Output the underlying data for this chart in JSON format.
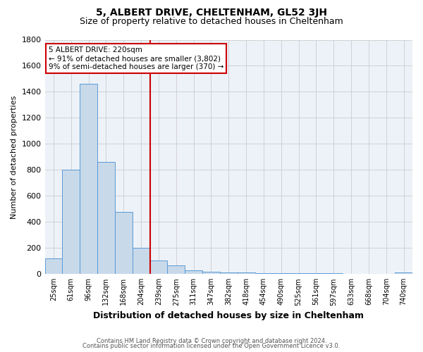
{
  "title": "5, ALBERT DRIVE, CHELTENHAM, GL52 3JH",
  "subtitle": "Size of property relative to detached houses in Cheltenham",
  "xlabel": "Distribution of detached houses by size in Cheltenham",
  "ylabel": "Number of detached properties",
  "footnote1": "Contains HM Land Registry data © Crown copyright and database right 2024.",
  "footnote2": "Contains public sector information licensed under the Open Government Licence v3.0.",
  "categories": [
    "25sqm",
    "61sqm",
    "96sqm",
    "132sqm",
    "168sqm",
    "204sqm",
    "239sqm",
    "275sqm",
    "311sqm",
    "347sqm",
    "382sqm",
    "418sqm",
    "454sqm",
    "490sqm",
    "525sqm",
    "561sqm",
    "597sqm",
    "633sqm",
    "668sqm",
    "704sqm",
    "740sqm"
  ],
  "values": [
    120,
    800,
    1460,
    860,
    480,
    200,
    105,
    65,
    30,
    20,
    15,
    10,
    8,
    6,
    5,
    5,
    5,
    4,
    2,
    2,
    10
  ],
  "bar_color": "#c8d9ea",
  "bar_edge_color": "#5b9bd5",
  "red_line_x": 5.5,
  "red_line_color": "#cc0000",
  "annotation_text": "5 ALBERT DRIVE: 220sqm\n← 91% of detached houses are smaller (3,802)\n9% of semi-detached houses are larger (370) →",
  "annotation_box_color": "#ffffff",
  "annotation_box_edge": "#cc0000",
  "ylim": [
    0,
    1800
  ],
  "yticks": [
    0,
    200,
    400,
    600,
    800,
    1000,
    1200,
    1400,
    1600,
    1800
  ],
  "grid_color": "#cccccc",
  "background_color": "#edf2f8",
  "title_fontsize": 10,
  "subtitle_fontsize": 9,
  "ylabel_fontsize": 8,
  "xlabel_fontsize": 9
}
